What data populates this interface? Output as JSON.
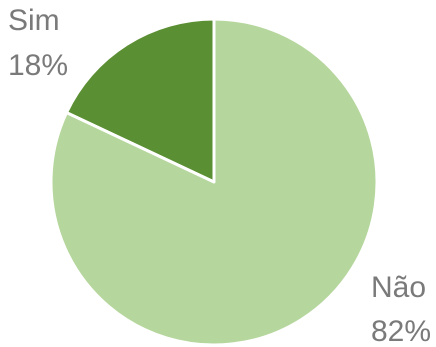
{
  "chart_data": {
    "type": "pie",
    "title": "",
    "legend": "none",
    "start_angle_deg": 0,
    "direction": "counterclockwise",
    "slices": [
      {
        "label": "Sim",
        "value": 18,
        "value_label": "18%",
        "color": "#5b8f33"
      },
      {
        "label": "Não",
        "value": 82,
        "value_label": "82%",
        "color": "#b5d69c"
      }
    ],
    "stroke_color": "#ffffff"
  }
}
